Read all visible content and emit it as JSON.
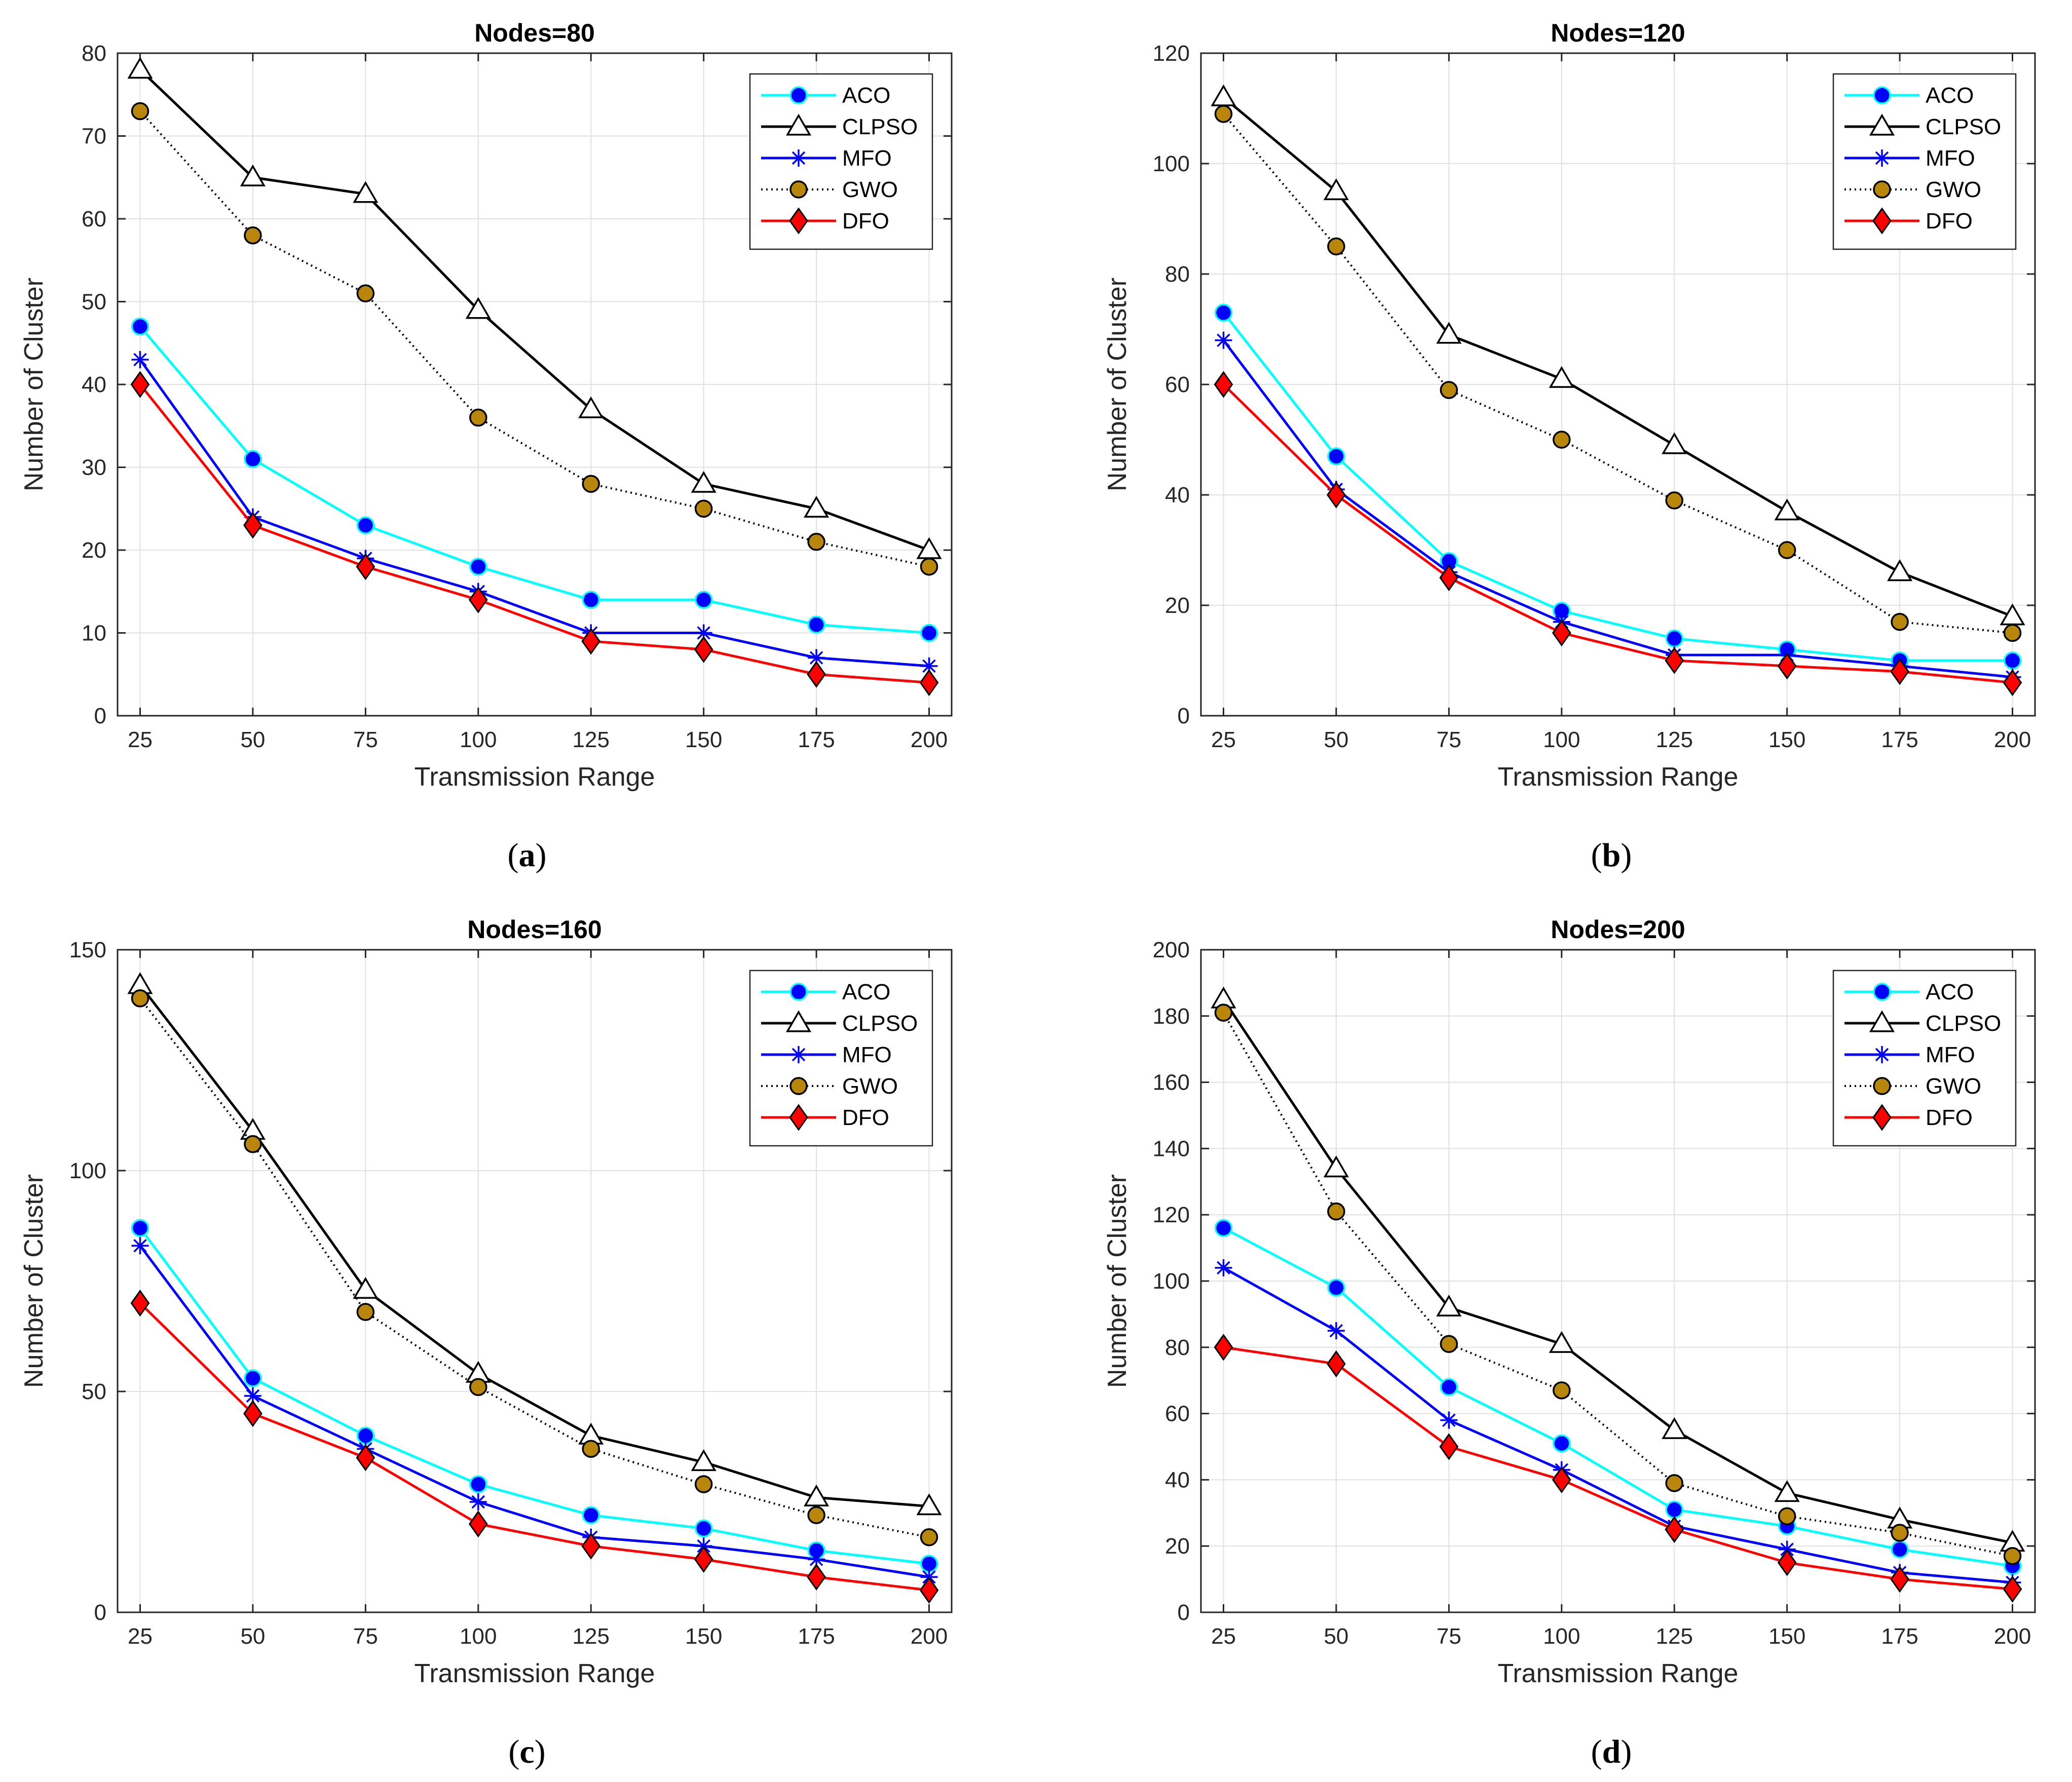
{
  "colors": {
    "ACO": "#00ffff",
    "CLPSO": "#000000",
    "MFO": "#0000ff",
    "GWO": "#000000",
    "DFO": "#ff0000",
    "aco_marker": "#0000ff",
    "gwo_marker": "#b8860b",
    "dfo_marker": "#ff0000"
  },
  "chart_data": [
    {
      "type": "line",
      "title": "Nodes=80",
      "caption_label": "a",
      "xlabel": "Transmission Range",
      "ylabel": "Number of Cluster",
      "x": [
        25,
        50,
        75,
        100,
        125,
        150,
        175,
        200
      ],
      "xlim": [
        20,
        205
      ],
      "ylim": [
        0,
        80
      ],
      "yticks": [
        0,
        10,
        20,
        30,
        40,
        50,
        60,
        70,
        80
      ],
      "grid": true,
      "legend_position": "top-right",
      "series": [
        {
          "name": "ACO",
          "values": [
            47,
            31,
            23,
            18,
            14,
            14,
            11,
            10
          ]
        },
        {
          "name": "CLPSO",
          "values": [
            78,
            65,
            63,
            49,
            37,
            28,
            25,
            20
          ]
        },
        {
          "name": "MFO",
          "values": [
            43,
            24,
            19,
            15,
            10,
            10,
            7,
            6
          ]
        },
        {
          "name": "GWO",
          "values": [
            73,
            58,
            51,
            36,
            28,
            25,
            21,
            18
          ]
        },
        {
          "name": "DFO",
          "values": [
            40,
            23,
            18,
            14,
            9,
            8,
            5,
            4
          ]
        }
      ]
    },
    {
      "type": "line",
      "title": "Nodes=120",
      "caption_label": "b",
      "xlabel": "Transmission Range",
      "ylabel": "Number of Cluster",
      "x": [
        25,
        50,
        75,
        100,
        125,
        150,
        175,
        200
      ],
      "xlim": [
        20,
        205
      ],
      "ylim": [
        0,
        120
      ],
      "yticks": [
        0,
        20,
        40,
        60,
        80,
        100,
        120
      ],
      "grid": true,
      "legend_position": "top-right",
      "series": [
        {
          "name": "ACO",
          "values": [
            73,
            47,
            28,
            19,
            14,
            12,
            10,
            10
          ]
        },
        {
          "name": "CLPSO",
          "values": [
            112,
            95,
            69,
            61,
            49,
            37,
            26,
            18
          ]
        },
        {
          "name": "MFO",
          "values": [
            68,
            41,
            26,
            17,
            11,
            11,
            9,
            7
          ]
        },
        {
          "name": "GWO",
          "values": [
            109,
            85,
            59,
            50,
            39,
            30,
            17,
            15
          ]
        },
        {
          "name": "DFO",
          "values": [
            60,
            40,
            25,
            15,
            10,
            9,
            8,
            6
          ]
        }
      ]
    },
    {
      "type": "line",
      "title": "Nodes=160",
      "caption_label": "c",
      "xlabel": "Transmission Range",
      "ylabel": "Number of Cluster",
      "x": [
        25,
        50,
        75,
        100,
        125,
        150,
        175,
        200
      ],
      "xlim": [
        20,
        205
      ],
      "ylim": [
        0,
        150
      ],
      "yticks": [
        0,
        50,
        100,
        150
      ],
      "grid": true,
      "legend_position": "top-right",
      "series": [
        {
          "name": "ACO",
          "values": [
            87,
            53,
            40,
            29,
            22,
            19,
            14,
            11
          ]
        },
        {
          "name": "CLPSO",
          "values": [
            142,
            109,
            73,
            54,
            40,
            34,
            26,
            24
          ]
        },
        {
          "name": "MFO",
          "values": [
            83,
            49,
            37,
            25,
            17,
            15,
            12,
            8
          ]
        },
        {
          "name": "GWO",
          "values": [
            139,
            106,
            68,
            51,
            37,
            29,
            22,
            17
          ]
        },
        {
          "name": "DFO",
          "values": [
            70,
            45,
            35,
            20,
            15,
            12,
            8,
            5
          ]
        }
      ]
    },
    {
      "type": "line",
      "title": "Nodes=200",
      "caption_label": "d",
      "xlabel": "Transmission Range",
      "ylabel": "Number of Cluster",
      "x": [
        25,
        50,
        75,
        100,
        125,
        150,
        175,
        200
      ],
      "xlim": [
        20,
        205
      ],
      "ylim": [
        0,
        200
      ],
      "yticks": [
        0,
        20,
        40,
        60,
        80,
        100,
        120,
        140,
        160,
        180,
        200
      ],
      "grid": true,
      "legend_position": "top-right",
      "series": [
        {
          "name": "ACO",
          "values": [
            116,
            98,
            68,
            51,
            31,
            26,
            19,
            14
          ]
        },
        {
          "name": "CLPSO",
          "values": [
            185,
            134,
            92,
            81,
            55,
            36,
            28,
            21
          ]
        },
        {
          "name": "MFO",
          "values": [
            104,
            85,
            58,
            43,
            26,
            19,
            12,
            9
          ]
        },
        {
          "name": "GWO",
          "values": [
            181,
            121,
            81,
            67,
            39,
            29,
            24,
            17
          ]
        },
        {
          "name": "DFO",
          "values": [
            80,
            75,
            50,
            40,
            25,
            15,
            10,
            7
          ]
        }
      ]
    }
  ]
}
